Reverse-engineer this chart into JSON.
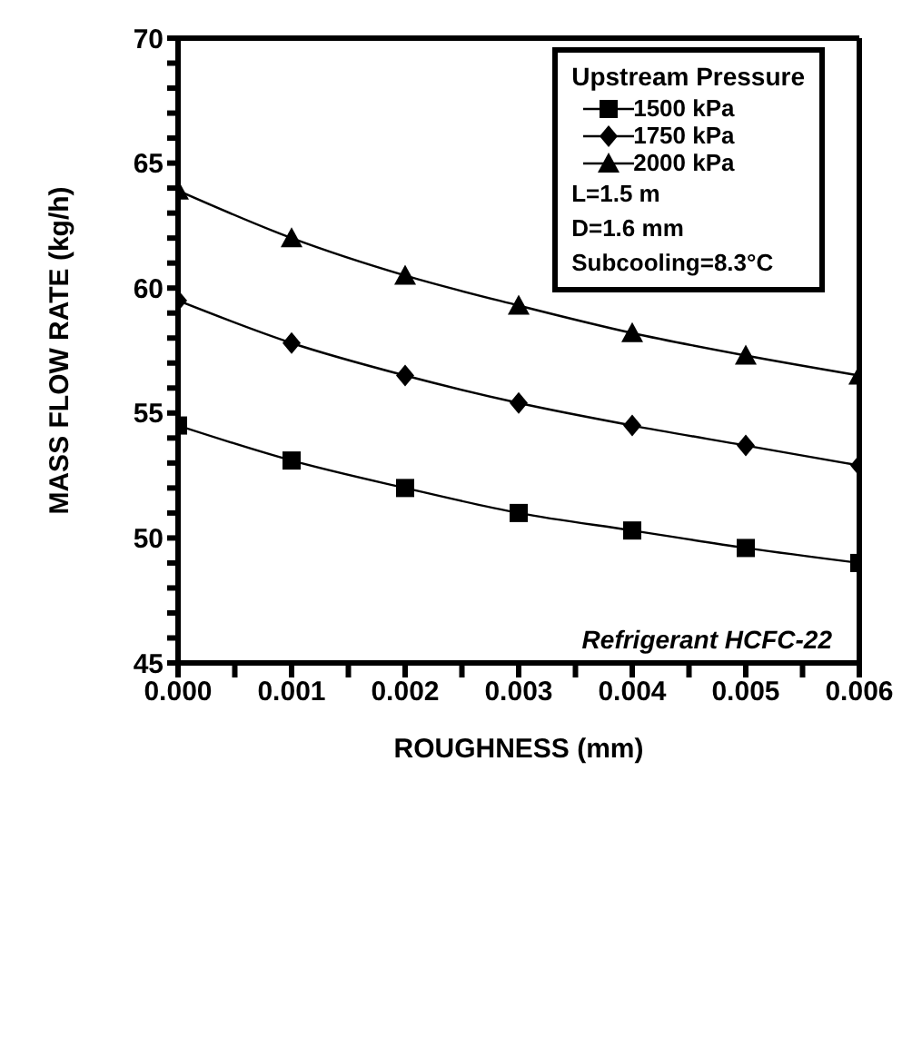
{
  "chart_data": {
    "type": "line",
    "xlabel": "ROUGHNESS (mm)",
    "ylabel": "MASS FLOW RATE (kg/h)",
    "legend_title": "Upstream Pressure",
    "x": [
      0,
      0.001,
      0.002,
      0.003,
      0.004,
      0.005,
      0.006
    ],
    "series": [
      {
        "name": "1500 kPa",
        "color": "#000000",
        "marker": "square",
        "values": [
          54.5,
          53.1,
          52.0,
          51.0,
          50.3,
          49.6,
          49.0
        ]
      },
      {
        "name": "1750 kPa",
        "color": "#000000",
        "marker": "diamond",
        "values": [
          59.5,
          57.8,
          56.5,
          55.4,
          54.5,
          53.7,
          52.9
        ]
      },
      {
        "name": "2000 kPa",
        "color": "#000000",
        "marker": "triangle",
        "values": [
          63.9,
          62.0,
          60.5,
          59.3,
          58.2,
          57.3,
          56.5
        ]
      }
    ],
    "xlim": [
      0,
      0.006
    ],
    "xticks": [
      {
        "value": 0,
        "label": "0.000"
      },
      {
        "value": 0.0005,
        "label": null
      },
      {
        "value": 0.001,
        "label": "0.001"
      },
      {
        "value": 0.0015,
        "label": null
      },
      {
        "value": 0.002,
        "label": "0.002"
      },
      {
        "value": 0.0025,
        "label": null
      },
      {
        "value": 0.003,
        "label": "0.003"
      },
      {
        "value": 0.0035,
        "label": null
      },
      {
        "value": 0.004,
        "label": "0.004"
      },
      {
        "value": 0.0045,
        "label": null
      },
      {
        "value": 0.005,
        "label": "0.005"
      },
      {
        "value": 0.0055,
        "label": null
      },
      {
        "value": 0.006,
        "label": "0.006"
      }
    ],
    "ylim": [
      45,
      70
    ],
    "yticks": [
      45,
      {
        "value": 46,
        "label": null
      },
      {
        "value": 47,
        "label": null
      },
      {
        "value": 48,
        "label": null
      },
      {
        "value": 49,
        "label": null
      },
      50,
      {
        "value": 51,
        "label": null
      },
      {
        "value": 52,
        "label": null
      },
      {
        "value": 53,
        "label": null
      },
      {
        "value": 54,
        "label": null
      },
      55,
      {
        "value": 56,
        "label": null
      },
      {
        "value": 57,
        "label": null
      },
      {
        "value": 58,
        "label": null
      },
      {
        "value": 59,
        "label": null
      },
      60,
      {
        "value": 61,
        "label": null
      },
      {
        "value": 62,
        "label": null
      },
      {
        "value": 63,
        "label": null
      },
      {
        "value": 64,
        "label": null
      },
      65,
      {
        "value": 66,
        "label": null
      },
      {
        "value": 67,
        "label": null
      },
      {
        "value": 68,
        "label": null
      },
      {
        "value": 69,
        "label": null
      },
      70
    ],
    "annotations": [
      "L=1.5 m",
      "D=1.6 mm",
      "Subcooling=8.3°C",
      "Refrigerant HCFC-22"
    ],
    "legend": "top right",
    "line_style": "solid"
  }
}
